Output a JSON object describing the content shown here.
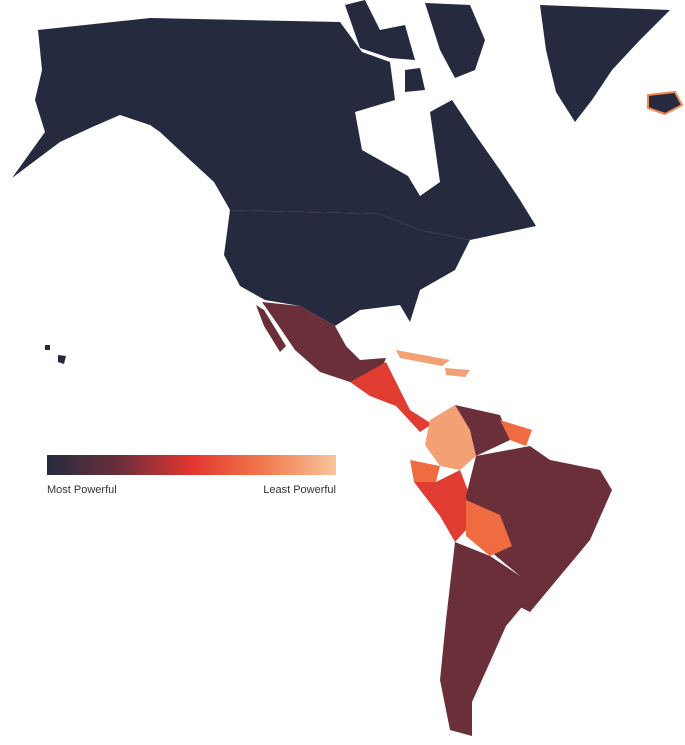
{
  "legend": {
    "min_label": "Most Powerful",
    "max_label": "Least Powerful",
    "colors": [
      "#262a3f",
      "#6b2f3a",
      "#e3352f",
      "#f17a4c",
      "#f8c49c"
    ]
  }
}
